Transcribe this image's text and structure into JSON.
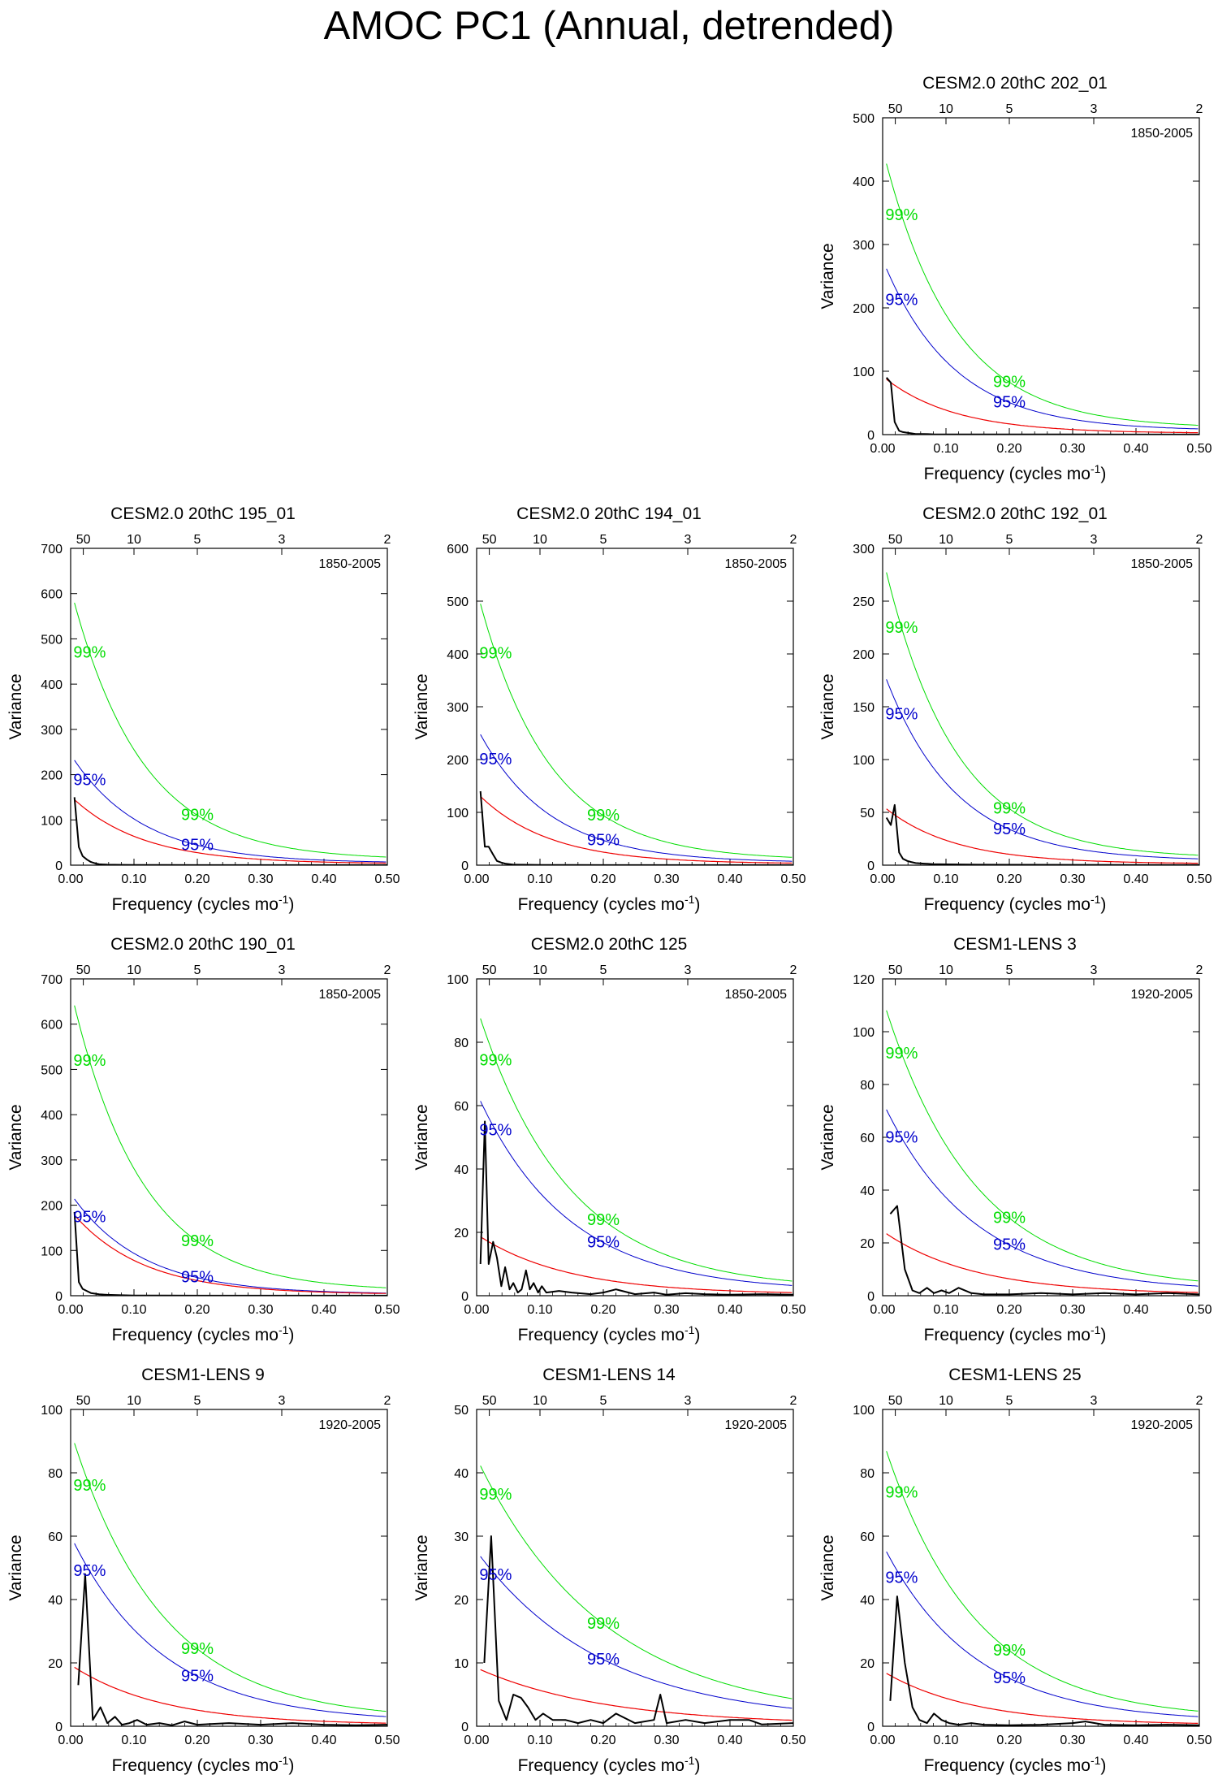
{
  "title": "AMOC PC1 (Annual, detrended)",
  "colors": {
    "spectrum": "#000000",
    "red_noise": "#ee0000",
    "ci95": "#0000cc",
    "ci99": "#00dd00"
  },
  "common": {
    "xlabel": "Frequency (cycles mo",
    "xlabel_sup": "-1",
    "xlabel_close": ")",
    "ylabel": "Variance",
    "xticks": [
      "0.00",
      "0.10",
      "0.20",
      "0.30",
      "0.40",
      "0.50"
    ],
    "top_ticks": [
      "50",
      "10",
      "5",
      "3",
      "2"
    ],
    "label95": "95%",
    "label99": "99%"
  },
  "chart_data": [
    {
      "type": "line",
      "title": "CESM2.0 20thC 202_01",
      "period": "1850-2005",
      "ylim": [
        0,
        500
      ],
      "ytick_step": 100,
      "ytick_labels": [
        "0",
        "100",
        "200",
        "300",
        "400",
        "500"
      ],
      "red_peak": 90,
      "red_decay": 9,
      "r95": 3.0,
      "r99": 4.9,
      "x": [
        0.006,
        0.013,
        0.019,
        0.026,
        0.032,
        0.039,
        0.045,
        0.052,
        0.058,
        0.065,
        0.08,
        0.1,
        0.15,
        0.2,
        0.3,
        0.4,
        0.5
      ],
      "values": [
        90,
        82,
        20,
        6,
        4,
        3,
        2,
        1,
        1,
        1,
        0.5,
        0.4,
        0.3,
        0.2,
        0.2,
        0.1,
        0.1
      ]
    },
    {
      "type": "line",
      "title": "CESM2.0 20thC 195_01",
      "period": "1850-2005",
      "ylim": [
        0,
        700
      ],
      "ytick_step": 100,
      "ytick_labels": [
        "0",
        "100",
        "200",
        "300",
        "400",
        "500",
        "600",
        "700"
      ],
      "red_peak": 150,
      "red_decay": 9,
      "r95": 1.6,
      "r99": 4.0,
      "x": [
        0.006,
        0.013,
        0.019,
        0.026,
        0.032,
        0.039,
        0.045,
        0.058,
        0.08,
        0.1,
        0.15,
        0.2,
        0.3,
        0.4,
        0.5
      ],
      "values": [
        150,
        40,
        20,
        12,
        7,
        4,
        2,
        1,
        0.8,
        0.5,
        0.3,
        0.2,
        0.2,
        0.1,
        0.1
      ]
    },
    {
      "type": "line",
      "title": "CESM2.0 20thC 194_01",
      "period": "1850-2005",
      "ylim": [
        0,
        600
      ],
      "ytick_step": 100,
      "ytick_labels": [
        "0",
        "100",
        "200",
        "300",
        "400",
        "500",
        "600"
      ],
      "red_peak": 135,
      "red_decay": 9,
      "r95": 1.9,
      "r99": 3.8,
      "x": [
        0.006,
        0.013,
        0.019,
        0.026,
        0.032,
        0.039,
        0.045,
        0.058,
        0.08,
        0.1,
        0.15,
        0.2,
        0.3,
        0.4,
        0.5
      ],
      "values": [
        140,
        35,
        35,
        20,
        8,
        5,
        3,
        1,
        0.8,
        0.5,
        0.3,
        0.2,
        0.2,
        0.1,
        0.1
      ]
    },
    {
      "type": "line",
      "title": "CESM2.0 20thC 192_01",
      "period": "1850-2005",
      "ylim": [
        0,
        300
      ],
      "ytick_step": 50,
      "ytick_labels": [
        "0",
        "50",
        "100",
        "150",
        "200",
        "250",
        "300"
      ],
      "red_peak": 55,
      "red_decay": 9,
      "r95": 3.3,
      "r99": 5.2,
      "x": [
        0.006,
        0.013,
        0.019,
        0.026,
        0.032,
        0.039,
        0.045,
        0.052,
        0.065,
        0.08,
        0.1,
        0.15,
        0.2,
        0.3,
        0.4,
        0.5
      ],
      "values": [
        45,
        38,
        57,
        12,
        6,
        4,
        3,
        2,
        1.5,
        1,
        0.8,
        0.5,
        0.4,
        0.3,
        0.2,
        0.2
      ]
    },
    {
      "type": "line",
      "title": "CESM2.0 20thC 190_01",
      "period": "1850-2005",
      "ylim": [
        0,
        700
      ],
      "ytick_step": 100,
      "ytick_labels": [
        "0",
        "100",
        "200",
        "300",
        "400",
        "500",
        "600",
        "700"
      ],
      "red_peak": 185,
      "red_decay": 9,
      "r95": 1.2,
      "r99": 3.6,
      "x": [
        0.006,
        0.013,
        0.019,
        0.026,
        0.032,
        0.045,
        0.058,
        0.08,
        0.1,
        0.15,
        0.2,
        0.3,
        0.4,
        0.5
      ],
      "values": [
        185,
        30,
        15,
        10,
        6,
        3,
        2,
        1,
        0.5,
        0.3,
        0.2,
        0.2,
        0.1,
        0.1
      ]
    },
    {
      "type": "line",
      "title": "CESM2.0 20thC 125",
      "period": "1850-2005",
      "ylim": [
        0,
        100
      ],
      "ytick_step": 20,
      "ytick_labels": [
        "0",
        "20",
        "40",
        "60",
        "80",
        "100"
      ],
      "red_peak": 19,
      "red_decay": 7,
      "r95": 3.3,
      "r99": 4.7,
      "x": [
        0.006,
        0.013,
        0.019,
        0.026,
        0.032,
        0.039,
        0.045,
        0.052,
        0.058,
        0.065,
        0.071,
        0.078,
        0.084,
        0.09,
        0.097,
        0.103,
        0.11,
        0.13,
        0.15,
        0.18,
        0.2,
        0.22,
        0.25,
        0.28,
        0.3,
        0.33,
        0.36,
        0.4,
        0.45,
        0.5
      ],
      "values": [
        10,
        55,
        10,
        17,
        12,
        3,
        9,
        2,
        4,
        1,
        2,
        8,
        2,
        4,
        1,
        3,
        1,
        1.5,
        1,
        0.5,
        1,
        2,
        0.5,
        1,
        0.3,
        0.8,
        0.5,
        0.3,
        0.5,
        0.3
      ]
    },
    {
      "type": "line",
      "title": "CESM1-LENS 3",
      "period": "1920-2005",
      "ylim": [
        0,
        120
      ],
      "ytick_step": 20,
      "ytick_labels": [
        "0",
        "20",
        "40",
        "60",
        "80",
        "100",
        "120"
      ],
      "red_peak": 24,
      "red_decay": 7,
      "r95": 3.0,
      "r99": 4.6,
      "x": [
        0.012,
        0.023,
        0.035,
        0.047,
        0.058,
        0.07,
        0.081,
        0.093,
        0.105,
        0.12,
        0.14,
        0.16,
        0.2,
        0.25,
        0.3,
        0.35,
        0.4,
        0.45,
        0.5
      ],
      "values": [
        31,
        34,
        10,
        2,
        1,
        3,
        1,
        2,
        1,
        3,
        1,
        0.5,
        0.5,
        1,
        0.5,
        1,
        0.5,
        1,
        0.5
      ]
    },
    {
      "type": "line",
      "title": "CESM1-LENS 9",
      "period": "1920-2005",
      "ylim": [
        0,
        100
      ],
      "ytick_step": 20,
      "ytick_labels": [
        "0",
        "20",
        "40",
        "60",
        "80",
        "100"
      ],
      "red_peak": 19,
      "red_decay": 7,
      "r95": 3.1,
      "r99": 4.8,
      "x": [
        0.012,
        0.023,
        0.035,
        0.047,
        0.058,
        0.07,
        0.081,
        0.093,
        0.105,
        0.12,
        0.14,
        0.16,
        0.18,
        0.2,
        0.25,
        0.3,
        0.35,
        0.4,
        0.45,
        0.5
      ],
      "values": [
        13,
        48,
        2,
        6,
        1,
        3,
        0.5,
        1,
        2,
        0.5,
        1,
        0.3,
        1.5,
        0.5,
        1,
        0.5,
        1,
        0.5,
        0.3,
        0.5
      ]
    },
    {
      "type": "line",
      "title": "CESM1-LENS 14",
      "period": "1920-2005",
      "ylim": [
        0,
        50
      ],
      "ytick_step": 10,
      "ytick_labels": [
        "0",
        "10",
        "20",
        "30",
        "40",
        "50"
      ],
      "red_peak": 9,
      "red_decay": 5,
      "r95": 3.0,
      "r99": 4.6,
      "x": [
        0.012,
        0.023,
        0.035,
        0.047,
        0.058,
        0.07,
        0.081,
        0.093,
        0.105,
        0.12,
        0.14,
        0.16,
        0.18,
        0.2,
        0.22,
        0.25,
        0.28,
        0.29,
        0.3,
        0.33,
        0.36,
        0.4,
        0.43,
        0.45,
        0.5
      ],
      "values": [
        10,
        30,
        4,
        1,
        5,
        4.5,
        3,
        1,
        2,
        1,
        1,
        0.5,
        1,
        0.5,
        2,
        0.5,
        1,
        5,
        0.5,
        1,
        0.5,
        1,
        1,
        0.3,
        0.5
      ]
    },
    {
      "type": "line",
      "title": "CESM1-LENS 25",
      "period": "1920-2005",
      "ylim": [
        0,
        100
      ],
      "ytick_step": 20,
      "ytick_labels": [
        "0",
        "20",
        "40",
        "60",
        "80",
        "100"
      ],
      "red_peak": 17,
      "red_decay": 7,
      "r95": 3.3,
      "r99": 5.2,
      "x": [
        0.012,
        0.023,
        0.035,
        0.047,
        0.058,
        0.07,
        0.081,
        0.093,
        0.105,
        0.12,
        0.14,
        0.16,
        0.2,
        0.25,
        0.3,
        0.32,
        0.35,
        0.4,
        0.45,
        0.5
      ],
      "values": [
        8,
        41,
        20,
        6,
        2,
        1,
        4,
        2,
        1,
        0.5,
        1,
        0.5,
        0.3,
        0.5,
        1,
        1.5,
        0.5,
        0.3,
        0.5,
        0.3
      ]
    }
  ]
}
